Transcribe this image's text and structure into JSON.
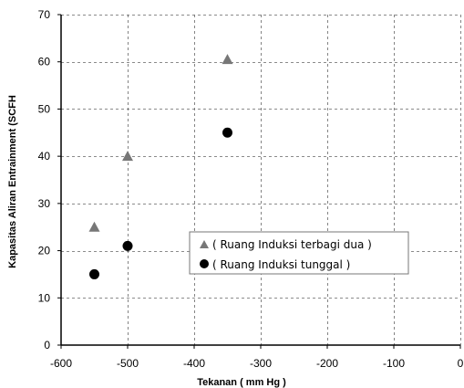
{
  "chart_data": {
    "type": "scatter",
    "xlabel": "Tekanan ( mm Hg )",
    "ylabel": "Kapasitas Aliran Entrainment (SCFH",
    "xlim": [
      -600,
      0
    ],
    "ylim": [
      0,
      70
    ],
    "x_ticks": [
      -600,
      -500,
      -400,
      -300,
      -200,
      -100,
      0
    ],
    "y_ticks": [
      0,
      10,
      20,
      30,
      40,
      50,
      60,
      70
    ],
    "grid": true,
    "grid_style": "dashed",
    "legend_position": "center-right",
    "series": [
      {
        "name": "Ruang Induksi terbagi dua",
        "legend_label": "( Ruang Induksi terbagi dua )",
        "marker": "triangle",
        "color": "#777777",
        "x": [
          -550,
          -500,
          -350
        ],
        "y": [
          25,
          40,
          60.5
        ]
      },
      {
        "name": "Ruang Induksi tunggal",
        "legend_label": "( Ruang Induksi tunggal )",
        "marker": "circle",
        "color": "#000000",
        "x": [
          -550,
          -500,
          -350
        ],
        "y": [
          15,
          21,
          45
        ]
      }
    ]
  }
}
